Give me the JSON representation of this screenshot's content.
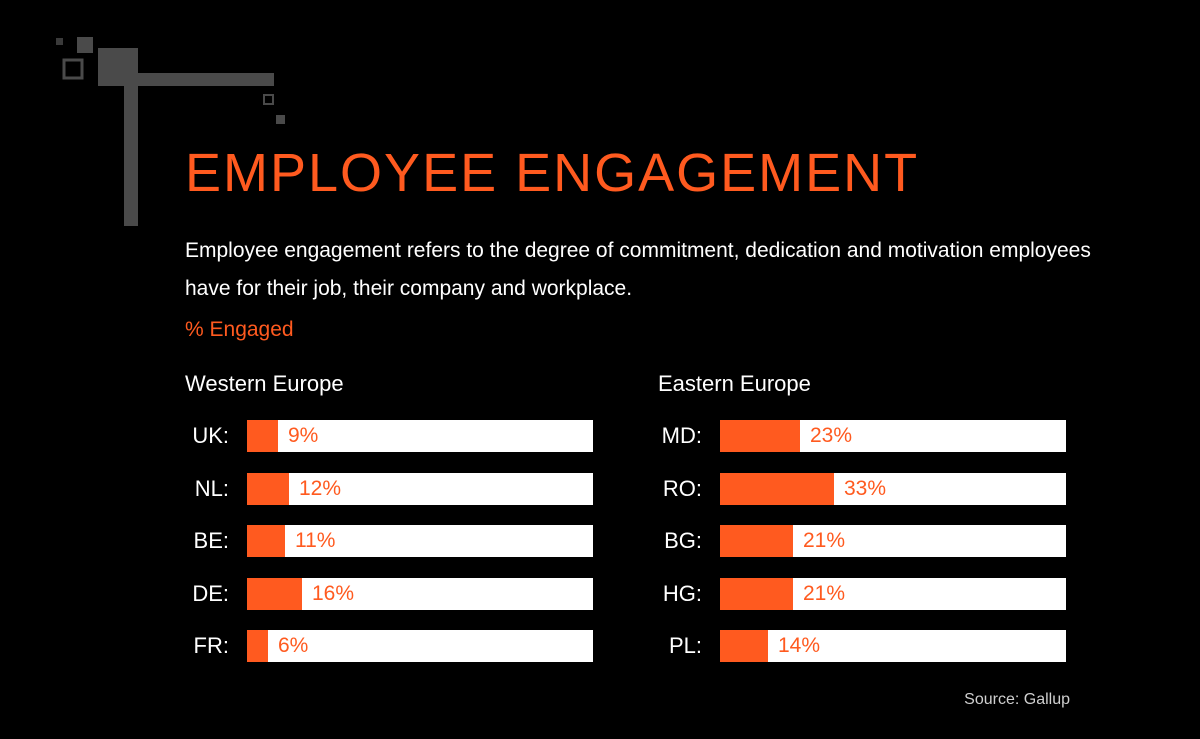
{
  "title": "EMPLOYEE ENGAGEMENT",
  "description": "Employee engagement refers to the degree of commitment, dedication and motivation employees have for their job, their company and workplace.",
  "metric_label": "% Engaged",
  "source": "Source: Gallup",
  "colors": {
    "accent": "#ff5a1f",
    "track": "#ffffff",
    "background": "#000000"
  },
  "chart_data": [
    {
      "type": "bar",
      "orientation": "horizontal",
      "title": "Western Europe",
      "categories": [
        "UK:",
        "NL:",
        "BE:",
        "DE:",
        "FR:"
      ],
      "values": [
        9,
        12,
        11,
        16,
        6
      ],
      "value_labels": [
        "9%",
        "12%",
        "11%",
        "16%",
        "6%"
      ],
      "xlim": [
        0,
        100
      ],
      "grid": false
    },
    {
      "type": "bar",
      "orientation": "horizontal",
      "title": "Eastern Europe",
      "categories": [
        "MD:",
        "RO:",
        "BG:",
        "HG:",
        "PL:"
      ],
      "values": [
        23,
        33,
        21,
        21,
        14
      ],
      "value_labels": [
        "23%",
        "33%",
        "21%",
        "21%",
        "14%"
      ],
      "xlim": [
        0,
        100
      ],
      "grid": false
    }
  ]
}
